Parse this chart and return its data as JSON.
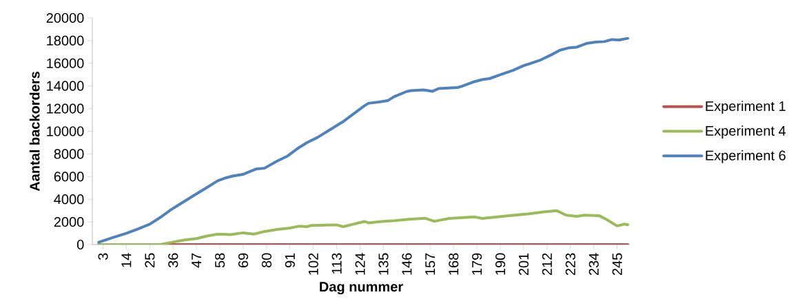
{
  "chart_data": {
    "type": "line",
    "xlabel": "Dag nummer",
    "ylabel": "Aantal backorders",
    "xlim": [
      -2,
      251
    ],
    "xticks": [
      3,
      14,
      25,
      36,
      47,
      58,
      69,
      80,
      91,
      102,
      113,
      124,
      135,
      146,
      157,
      168,
      179,
      190,
      201,
      212,
      223,
      234,
      245
    ],
    "ylim": [
      0,
      20000
    ],
    "yticks": [
      0,
      2000,
      4000,
      6000,
      8000,
      10000,
      12000,
      14000,
      16000,
      18000,
      20000
    ],
    "grid": false,
    "legend": "right",
    "marker": "none",
    "line_style": "solid",
    "series": [
      {
        "name": "Experiment 1",
        "color": "#c0504d",
        "x": [
          1,
          50,
          100,
          150,
          200,
          250
        ],
        "values": [
          0,
          0,
          0,
          0,
          0,
          0
        ]
      },
      {
        "name": "Experiment 4",
        "color": "#9bbb59",
        "x": [
          1,
          30,
          35,
          42,
          47,
          52,
          57,
          63,
          69,
          74,
          79,
          85,
          91,
          95,
          99,
          101,
          110,
          113,
          116,
          122,
          126,
          128,
          134,
          139,
          146,
          149.5,
          154.5,
          159,
          166,
          178,
          181.5,
          191,
          203,
          210.5,
          216.5,
          221,
          226,
          229.5,
          236.5,
          240,
          245,
          248.5,
          250
        ],
        "values": [
          0,
          0,
          190,
          420,
          530,
          760,
          930,
          880,
          1040,
          930,
          1160,
          1340,
          1460,
          1620,
          1580,
          1690,
          1740,
          1740,
          1580,
          1850,
          2040,
          1920,
          2040,
          2090,
          2220,
          2260,
          2330,
          2060,
          2310,
          2440,
          2310,
          2490,
          2710,
          2890,
          3000,
          2600,
          2490,
          2600,
          2560,
          2220,
          1650,
          1810,
          1750
        ]
      },
      {
        "name": "Experiment 6",
        "color": "#4f81bd",
        "x": [
          1,
          8,
          14,
          19,
          25,
          30,
          35,
          40,
          46,
          52,
          57,
          61,
          64,
          69,
          72,
          75,
          79,
          85,
          90,
          95,
          99,
          104,
          110,
          116,
          121,
          126,
          128,
          133,
          137,
          140,
          146,
          148,
          154,
          158,
          161,
          170,
          172,
          177,
          181.5,
          185,
          191,
          196,
          200.7,
          209,
          214,
          218,
          222,
          226,
          230.6,
          235,
          239,
          242.5,
          246,
          250
        ],
        "values": [
          200,
          650,
          1000,
          1340,
          1800,
          2400,
          3080,
          3660,
          4360,
          5050,
          5630,
          5900,
          6050,
          6200,
          6440,
          6670,
          6740,
          7370,
          7830,
          8530,
          9000,
          9460,
          10150,
          10850,
          11540,
          12240,
          12470,
          12580,
          12700,
          13050,
          13510,
          13590,
          13650,
          13520,
          13770,
          13860,
          13970,
          14330,
          14560,
          14650,
          15050,
          15370,
          15770,
          16290,
          16740,
          17140,
          17350,
          17420,
          17750,
          17870,
          17910,
          18090,
          18050,
          18200
        ]
      }
    ]
  }
}
